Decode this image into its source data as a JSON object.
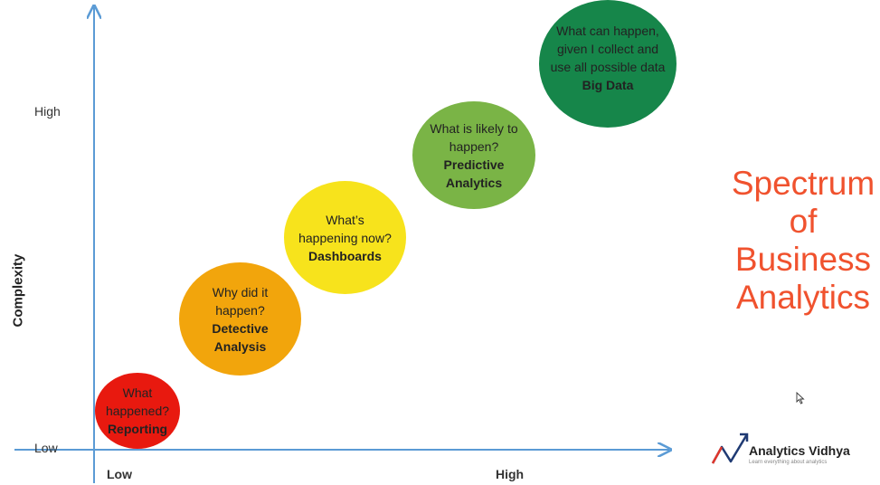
{
  "axes": {
    "y_title": "Complexity",
    "y_high": "High",
    "y_low": "Low",
    "x_low": "Low",
    "x_high": "High"
  },
  "stages": [
    {
      "question": "What\nhappened?",
      "title": "Reporting",
      "color": "#e8190f"
    },
    {
      "question": "Why did it\nhappen?",
      "title": "Detective\nAnalysis",
      "color": "#f2a50c"
    },
    {
      "question": "What’s\nhappening now?",
      "title": "Dashboards",
      "color": "#f7e31c"
    },
    {
      "question": "What is likely to\nhappen?",
      "title": "Predictive\nAnalytics",
      "color": "#7ab446"
    },
    {
      "question": "What can happen,\ngiven I collect and\nuse all possible data",
      "title": "Big Data",
      "color": "#16864a"
    }
  ],
  "title": "Spectrum\nof\nBusiness\nAnalytics",
  "title_color": "#f0522e",
  "axis_color": "#5b9bd5",
  "logo": {
    "name": "Analytics Vidhya",
    "tagline": "Learn everything about analytics"
  },
  "cursor_icon": "mouse-pointer-icon"
}
